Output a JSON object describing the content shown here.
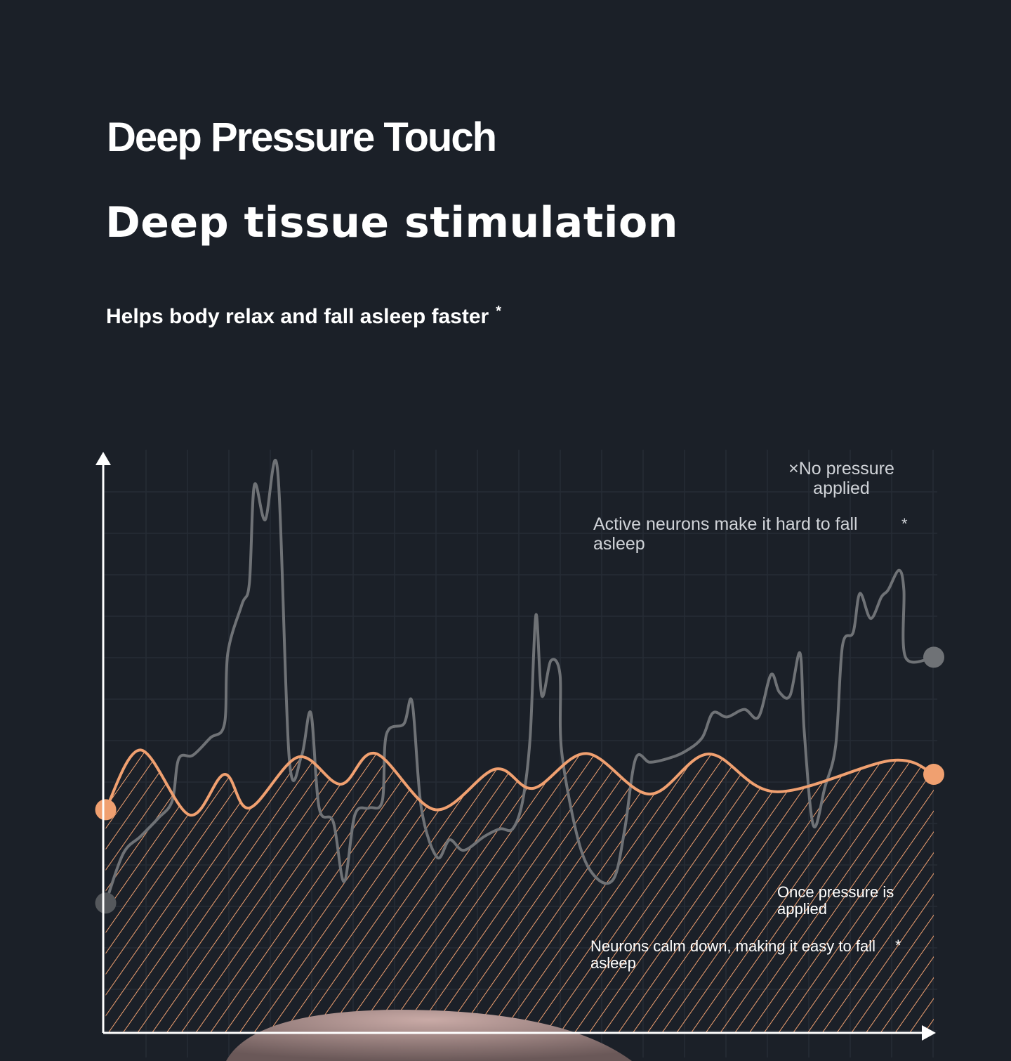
{
  "header": {
    "title": "Deep Pressure Touch",
    "headline": "Deep tissue stimulation",
    "subtitle": "Helps body relax and fall asleep faster",
    "subtitle_mark": "*"
  },
  "chart_data": {
    "type": "line",
    "title": "",
    "xlabel": "",
    "ylabel": "",
    "xlim": [
      0,
      100
    ],
    "ylim": [
      0,
      100
    ],
    "grid": true,
    "series": [
      {
        "name": "No pressure applied",
        "color": "#6f7276",
        "x": [
          0.3,
          2.4,
          4.5,
          6.6,
          8.3,
          9.1,
          10.8,
          12.9,
          14.6,
          15.0,
          16.7,
          17.6,
          18.2,
          19.5,
          21.0,
          22.4,
          23.9,
          25.0,
          26.0,
          27.7,
          29.0,
          30.3,
          32.0,
          33.6,
          34.1,
          36.2,
          37.2,
          38.3,
          40.2,
          41.7,
          43.4,
          45.9,
          47.8,
          49.3,
          50.5,
          51.4,
          52.1,
          52.8,
          53.9,
          55.0,
          55.2,
          57.3,
          59.4,
          61.5,
          62.8,
          64.1,
          65.8,
          67.9,
          70.0,
          72.1,
          73.4,
          75.1,
          77.2,
          78.9,
          80.4,
          81.4,
          82.7,
          83.9,
          84.4,
          85.5,
          86.9,
          88.2,
          89.0,
          90.3,
          91.1,
          92.4,
          93.7,
          94.5,
          95.8,
          96.4,
          96.6,
          100
        ],
        "y": [
          22.4,
          30.9,
          33.9,
          37.0,
          40.0,
          47.3,
          47.9,
          50.9,
          53.3,
          65.5,
          73.9,
          77.6,
          94.5,
          88.5,
          97.0,
          47.3,
          47.9,
          55.2,
          38.8,
          36.4,
          26.1,
          37.6,
          38.8,
          40.0,
          51.5,
          53.3,
          57.0,
          38.8,
          30.3,
          33.3,
          31.5,
          33.9,
          35.2,
          35.2,
          40.0,
          50.9,
          72.1,
          58.2,
          64.2,
          61.8,
          48.5,
          32.7,
          26.7,
          26.7,
          35.2,
          47.3,
          46.7,
          47.3,
          48.5,
          50.9,
          55.2,
          54.5,
          55.8,
          54.5,
          61.8,
          58.8,
          58.2,
          65.5,
          52.1,
          35.8,
          42.4,
          49.7,
          66.7,
          69.1,
          75.8,
          71.5,
          75.2,
          76.4,
          79.8,
          76.4,
          64.8,
          64.8
        ]
      },
      {
        "name": "Once pressure is applied",
        "color": "#f0a070",
        "x": [
          0.3,
          4.5,
          10.4,
          14.6,
          17.6,
          23.5,
          28.6,
          32.8,
          40.0,
          47.2,
          51.8,
          58.2,
          65.8,
          72.9,
          81.0,
          94.9,
          100
        ],
        "y": [
          38.5,
          48.8,
          37.6,
          44.6,
          38.8,
          47.6,
          42.9,
          48.2,
          38.5,
          45.5,
          42.2,
          48.2,
          41.2,
          48.1,
          41.6,
          47.0,
          44.6
        ]
      }
    ],
    "annotations": {
      "no_pressure_label": "×No pressure applied",
      "no_pressure_desc": "Active neurons make it hard to fall asleep",
      "pressure_label": "Once pressure is applied",
      "pressure_desc": "Neurons calm down, making it easy to fall asleep",
      "mark": "*"
    }
  }
}
